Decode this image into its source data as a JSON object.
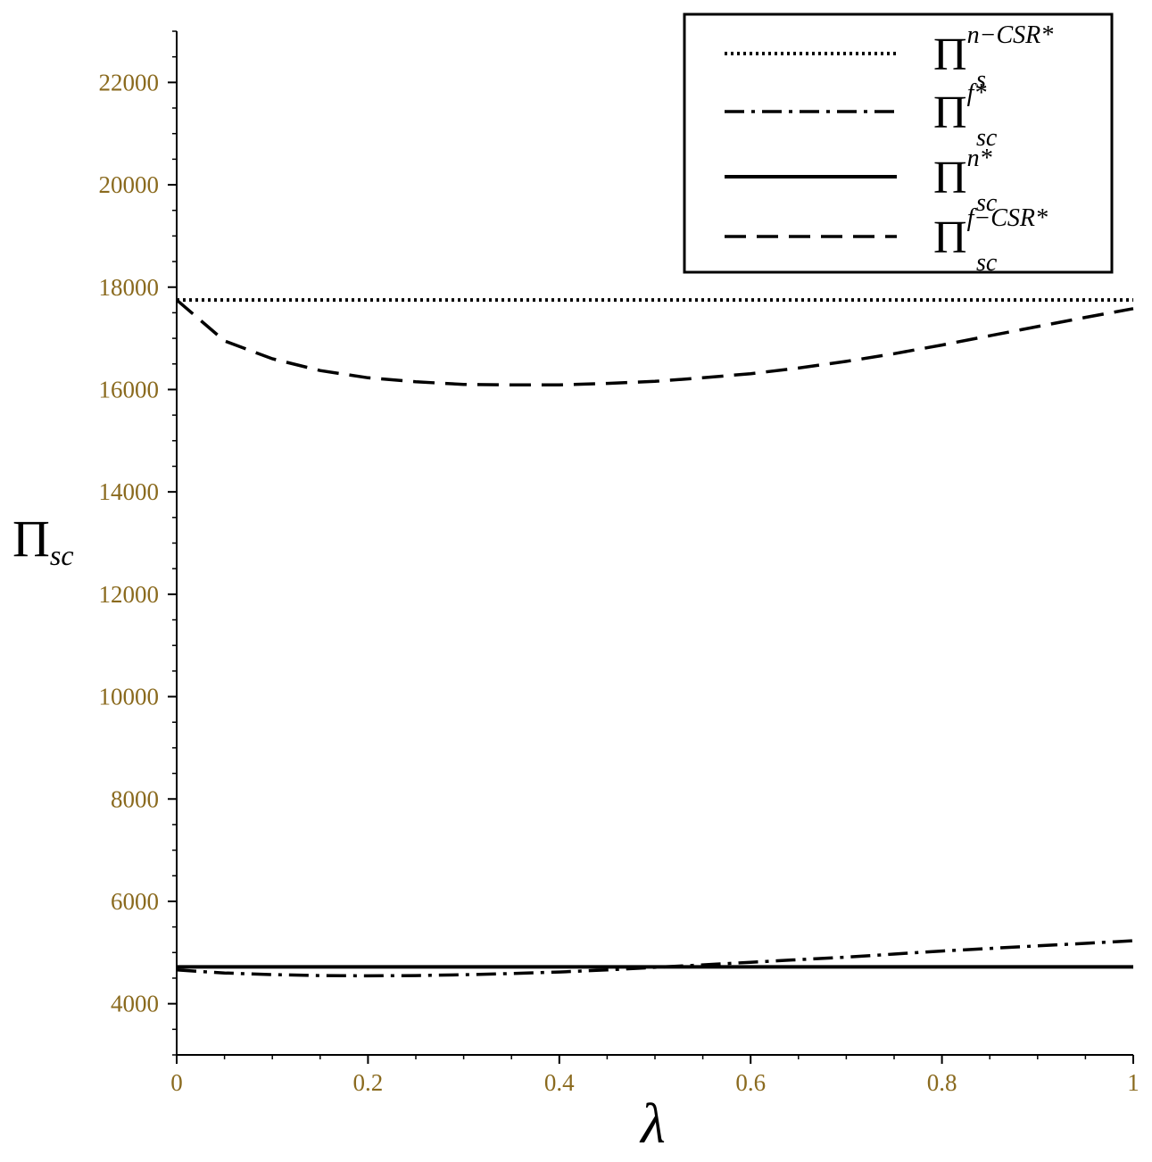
{
  "chart_data": {
    "type": "line",
    "title": "",
    "xlabel": "λ",
    "ylabel": {
      "base": "Π",
      "sub": "sc"
    },
    "xlim": [
      0,
      1
    ],
    "ylim": [
      3000,
      23000
    ],
    "x_ticks": [
      "0",
      "0.2",
      "0.4",
      "0.6",
      "0.8",
      "1"
    ],
    "x_tick_values": [
      0,
      0.2,
      0.4,
      0.6,
      0.8,
      1
    ],
    "y_ticks": [
      "4000",
      "6000",
      "8000",
      "10000",
      "12000",
      "14000",
      "16000",
      "18000",
      "20000",
      "22000"
    ],
    "y_tick_values": [
      4000,
      6000,
      8000,
      10000,
      12000,
      14000,
      16000,
      18000,
      20000,
      22000
    ],
    "grid": false,
    "legend_position": "top-right",
    "series": [
      {
        "name": {
          "base": "Π",
          "sub": "s",
          "sup": "n−CSR*"
        },
        "style": "dotted",
        "x": [
          0,
          1
        ],
        "y": [
          17750,
          17750
        ]
      },
      {
        "name": {
          "base": "Π",
          "sub": "sc",
          "sup": "f*"
        },
        "style": "dashdot",
        "x": [
          0,
          0.05,
          0.1,
          0.15,
          0.2,
          0.25,
          0.3,
          0.35,
          0.4,
          0.45,
          0.5,
          0.55,
          0.6,
          0.65,
          0.7,
          0.75,
          0.8,
          0.85,
          0.9,
          0.95,
          1
        ],
        "y": [
          4660,
          4600,
          4570,
          4550,
          4545,
          4550,
          4565,
          4590,
          4620,
          4660,
          4710,
          4760,
          4810,
          4860,
          4910,
          4970,
          5030,
          5080,
          5130,
          5180,
          5230
        ]
      },
      {
        "name": {
          "base": "Π",
          "sub": "sc",
          "sup": "n*"
        },
        "style": "solid",
        "x": [
          0,
          1
        ],
        "y": [
          4720,
          4720
        ]
      },
      {
        "name": {
          "base": "Π",
          "sub": "sc",
          "sup": "f−CSR*"
        },
        "style": "dashed",
        "x": [
          0,
          0.05,
          0.1,
          0.15,
          0.2,
          0.25,
          0.3,
          0.35,
          0.4,
          0.45,
          0.5,
          0.55,
          0.6,
          0.65,
          0.7,
          0.75,
          0.8,
          0.85,
          0.9,
          0.95,
          1
        ],
        "y": [
          17750,
          16950,
          16600,
          16370,
          16230,
          16150,
          16100,
          16090,
          16090,
          16120,
          16160,
          16230,
          16310,
          16420,
          16550,
          16700,
          16870,
          17050,
          17230,
          17410,
          17580
        ]
      }
    ]
  }
}
